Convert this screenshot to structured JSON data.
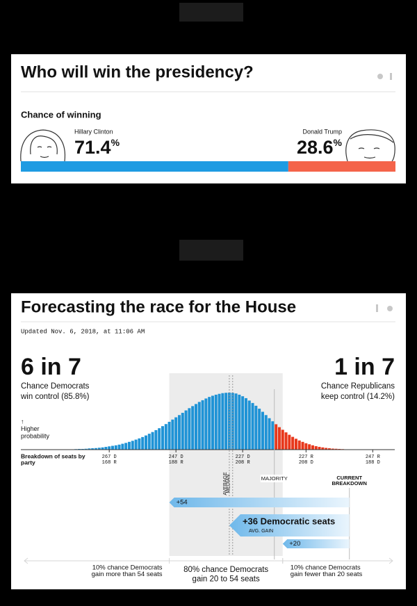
{
  "chart_data": [
    {
      "type": "stacked-bar",
      "title": "Who will win the presidency?",
      "subtitle": "Chance of winning",
      "unit": "%",
      "xlim": [
        0,
        100
      ],
      "series": [
        {
          "name": "Hillary Clinton",
          "color": "#1e9be2",
          "values": [
            71.4
          ]
        },
        {
          "name": "Donald Trump",
          "color": "#f4644a",
          "values": [
            28.6
          ]
        }
      ]
    },
    {
      "type": "bar",
      "title": "Forecasting the race for the House",
      "subtitle": "Updated Nov. 6, 2018, at 11:06 AM",
      "headline_left": {
        "label": "6 in 7",
        "color": "#1a8fd4",
        "lines": [
          "Chance Democrats",
          "win control (85.8%)"
        ]
      },
      "headline_right": {
        "label": "1 in 7",
        "color": "#e8361a",
        "lines": [
          "Chance Republicans",
          "keep control (14.2%)"
        ]
      },
      "y_label": [
        "↑",
        "Higher",
        "probability"
      ],
      "x_label": [
        "Breakdown of seats by",
        "party"
      ],
      "xlim": [
        293.5,
        181.4
      ],
      "ylim": [
        0,
        3.6
      ],
      "xticks": [
        {
          "value": 267,
          "label": "267 D",
          "label2": "168 R"
        },
        {
          "value": 247,
          "label": "247 D",
          "label2": "188 R"
        },
        {
          "value": 227,
          "label": "227 D",
          "label2": "208 R"
        },
        {
          "value": 208,
          "label": "227 R",
          "label2": "208 D"
        },
        {
          "value": 188,
          "label": "247 R",
          "label2": "188 D"
        }
      ],
      "series": [
        {
          "color": "#1f93d6",
          "x": [
            280,
            279,
            278,
            277,
            276,
            275,
            274,
            273,
            272,
            271,
            270,
            269,
            268,
            267,
            266,
            265,
            264,
            263,
            262,
            261,
            260,
            259,
            258,
            257,
            256,
            255,
            254,
            253,
            252,
            251,
            250,
            249,
            248,
            247,
            246,
            245,
            244,
            243,
            242,
            241,
            240,
            239,
            238,
            237,
            236,
            235,
            234,
            233,
            232,
            231,
            230,
            229,
            228,
            227,
            226,
            225,
            224,
            223,
            222,
            221,
            220,
            219,
            218
          ],
          "values": [
            0.02,
            0.02,
            0.02,
            0.03,
            0.04,
            0.04,
            0.05,
            0.07,
            0.08,
            0.09,
            0.11,
            0.13,
            0.16,
            0.19,
            0.22,
            0.25,
            0.29,
            0.34,
            0.39,
            0.45,
            0.51,
            0.58,
            0.65,
            0.73,
            0.82,
            0.92,
            1.02,
            1.13,
            1.24,
            1.36,
            1.48,
            1.61,
            1.74,
            1.87,
            2.0,
            2.13,
            2.27,
            2.4,
            2.52,
            2.64,
            2.76,
            2.86,
            2.96,
            3.05,
            3.12,
            3.18,
            3.23,
            3.27,
            3.29,
            3.3,
            3.29,
            3.25,
            3.18,
            3.09,
            2.98,
            2.84,
            2.7,
            2.54,
            2.37,
            2.19,
            2.0,
            1.82,
            1.64
          ]
        },
        {
          "color": "#e8381c",
          "x": [
            217,
            216,
            215,
            214,
            213,
            212,
            211,
            210,
            209,
            208,
            207,
            206,
            205,
            204,
            203,
            202,
            201,
            200,
            199,
            198,
            197,
            196,
            195,
            194,
            193,
            192,
            191,
            190
          ],
          "values": [
            1.47,
            1.3,
            1.15,
            1.0,
            0.86,
            0.74,
            0.63,
            0.53,
            0.45,
            0.37,
            0.31,
            0.25,
            0.2,
            0.16,
            0.13,
            0.1,
            0.08,
            0.06,
            0.05,
            0.04,
            0.03,
            0.02,
            0.02,
            0.01,
            0.01,
            0.01,
            0,
            0
          ]
        }
      ],
      "markers": [
        {
          "label": "AVERAGE",
          "value": 231
        },
        {
          "label": "MEDIAN",
          "value": 230
        },
        {
          "label": "MAJORITY",
          "value": 217.5
        },
        {
          "label": [
            "CURRENT",
            "BREAKDOWN"
          ],
          "value": 195
        }
      ],
      "gains": [
        {
          "value": 54,
          "label": "+54"
        },
        {
          "value": 36,
          "label": "+36 Democratic seats",
          "note": "AVG. GAIN"
        },
        {
          "value": 20,
          "label": "+20"
        }
      ],
      "notes": [
        [
          "10% chance Democrats",
          "gain more than 54 seats"
        ],
        [
          "80% chance Democrats",
          "gain 20 to 54 seats"
        ],
        [
          "10% chance Democrats",
          "gain fewer than 20 seats"
        ]
      ]
    }
  ]
}
